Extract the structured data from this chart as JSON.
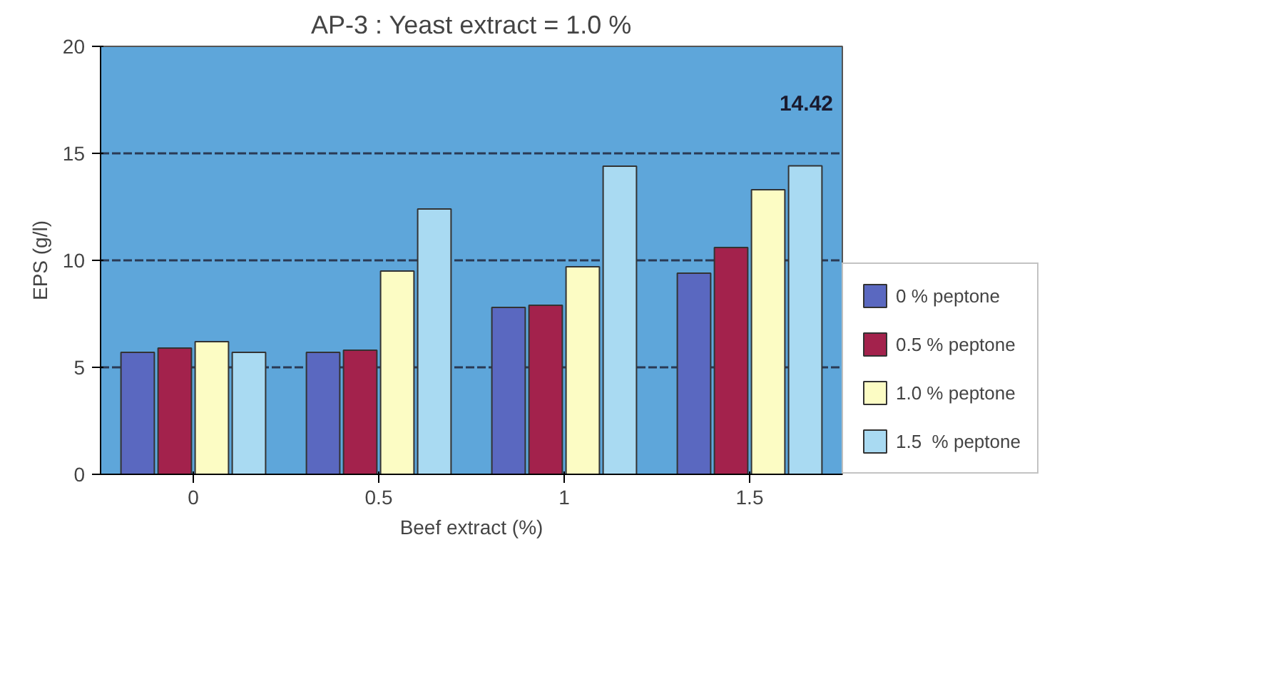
{
  "chart_data": {
    "type": "bar",
    "title": "AP-3 : Yeast extract = 1.0 %",
    "xlabel": "Beef extract (%)",
    "ylabel": "EPS (g/l)",
    "categories": [
      "0",
      "0.5",
      "1",
      "1.5"
    ],
    "series": [
      {
        "name": "0 % peptone",
        "color": "#5a68c0",
        "values": [
          5.7,
          5.7,
          7.8,
          9.4
        ]
      },
      {
        "name": "0.5 % peptone",
        "color": "#a3224c",
        "values": [
          5.9,
          5.8,
          7.9,
          10.6
        ]
      },
      {
        "name": "1.0 % peptone",
        "color": "#fcfcc4",
        "values": [
          6.2,
          9.5,
          9.7,
          13.3
        ]
      },
      {
        "name": "1.5  % peptone",
        "color": "#a9daf2",
        "values": [
          5.7,
          12.4,
          14.4,
          14.42
        ]
      }
    ],
    "ylim": [
      0,
      20
    ],
    "yticks": [
      0,
      5,
      10,
      15,
      20
    ],
    "grid": "y",
    "legend": "bottom right",
    "annotations": [
      "14.42"
    ]
  }
}
